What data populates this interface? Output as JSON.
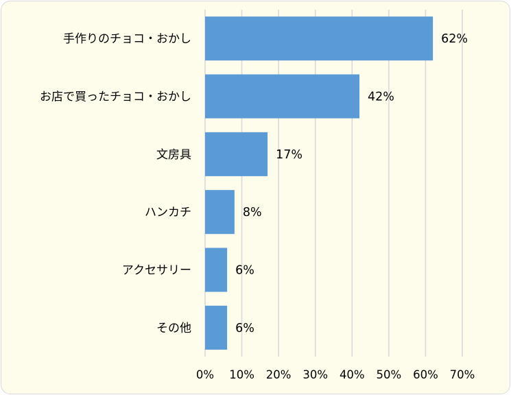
{
  "chart_data": {
    "type": "bar",
    "orientation": "horizontal",
    "categories": [
      "手作りのチョコ・おかし",
      "お店で買ったチョコ・おかし",
      "文房具",
      "ハンカチ",
      "アクセサリー",
      "その他"
    ],
    "values": [
      62,
      42,
      17,
      8,
      6,
      6
    ],
    "data_labels": [
      "62%",
      "42%",
      "17%",
      "8%",
      "6%",
      "6%"
    ],
    "xlim": [
      0,
      70
    ],
    "x_ticks": [
      0,
      10,
      20,
      30,
      40,
      50,
      60,
      70
    ],
    "x_tick_labels": [
      "0%",
      "10%",
      "20%",
      "30%",
      "40%",
      "50%",
      "60%",
      "70%"
    ],
    "grid": "vertical",
    "legend": "none",
    "title": "",
    "xlabel": "",
    "ylabel": ""
  },
  "colors": {
    "bar": "#5b9bd5",
    "grid": "#d9d9d9",
    "background": "#fefdec",
    "border": "#d9d9d9"
  }
}
